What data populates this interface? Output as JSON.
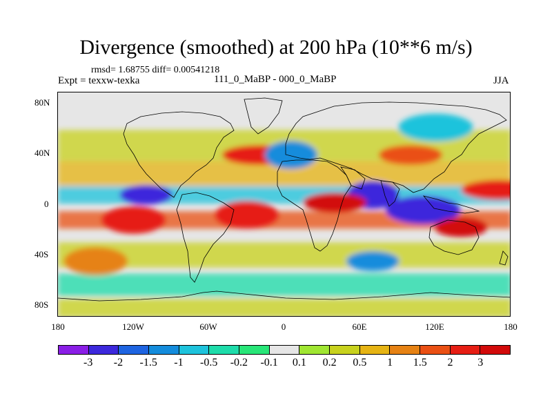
{
  "title": "Divergence (smoothed) at 200 hPa (10**6 m/s)",
  "stats_line": "rmsd= 1.68755 diff= 0.00541218",
  "experiment": "Expt = texxw-texka",
  "comparison": "111_0_MaBP - 000_0_MaBP",
  "season": "JJA",
  "x_ticks": [
    "180",
    "120W",
    "60W",
    "0",
    "60E",
    "120E",
    "180"
  ],
  "y_ticks": [
    "80N",
    "40N",
    "0",
    "40S",
    "80S"
  ],
  "colorbar": {
    "levels": [
      "-3",
      "-2",
      "-1.5",
      "-1",
      "-0.5",
      "-0.2",
      "-0.1",
      "0.1",
      "0.2",
      "0.5",
      "1",
      "1.5",
      "2",
      "3"
    ],
    "colors": [
      "#8a1ee6",
      "#3c28dc",
      "#1e64e1",
      "#148cdc",
      "#1ec3dc",
      "#1edcaa",
      "#28e678",
      "#e6e6e6",
      "#a0e632",
      "#c8d21e",
      "#e6b414",
      "#e68214",
      "#ea5014",
      "#e61e14",
      "#d20a0a"
    ]
  },
  "chart_data": {
    "type": "heatmap",
    "variable": "Divergence (smoothed) at 200 hPa",
    "units": "10**6 m/s",
    "x_range": [
      -180,
      180
    ],
    "y_range": [
      -90,
      90
    ],
    "value_range": [
      -3,
      3
    ],
    "features": [
      {
        "region": "tropical East Pacific / Central America",
        "lon": -110,
        "lat": 8,
        "value": -3
      },
      {
        "region": "equatorial East Pacific south",
        "lon": -120,
        "lat": -12,
        "value": 2
      },
      {
        "region": "central Pacific near dateline",
        "lon": 170,
        "lat": 12,
        "value": 2
      },
      {
        "region": "Indian Ocean / South Asia",
        "lon": 70,
        "lat": 8,
        "value": -3
      },
      {
        "region": "Arabian region",
        "lon": 40,
        "lat": 2,
        "value": 3
      },
      {
        "region": "Maritime Continent",
        "lon": 110,
        "lat": -4,
        "value": -3
      },
      {
        "region": "tropical West Pacific",
        "lon": 140,
        "lat": -18,
        "value": 3
      },
      {
        "region": "tropical Atlantic",
        "lon": -30,
        "lat": -8,
        "value": 2
      },
      {
        "region": "North Atlantic",
        "lon": -20,
        "lat": 40,
        "value": 2
      },
      {
        "region": "Mediterranean / Europe",
        "lon": 5,
        "lat": 40,
        "value": -1.5
      },
      {
        "region": "East Asia",
        "lon": 100,
        "lat": 40,
        "value": 1.5
      },
      {
        "region": "Siberia",
        "lon": 120,
        "lat": 62,
        "value": -1
      },
      {
        "region": "Southern Ocean Indian sector",
        "lon": 70,
        "lat": -45,
        "value": -1.5
      },
      {
        "region": "Southern Ocean Pacific sector",
        "lon": -150,
        "lat": -45,
        "value": 1
      }
    ]
  }
}
